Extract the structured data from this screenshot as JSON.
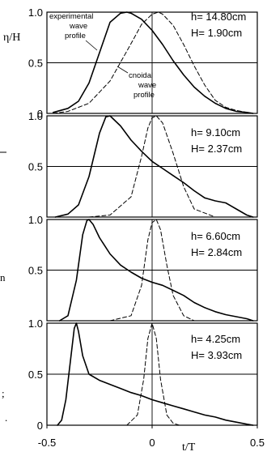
{
  "chart_data": [
    {
      "type": "line",
      "panel": 1,
      "ylabel": "η/H",
      "ytick_labels": [
        "0",
        "0.5",
        "1.0"
      ],
      "ylim": [
        0,
        1
      ],
      "xlim": [
        -0.5,
        0.5
      ],
      "grid": "horizontal at 0.5",
      "annotations": {
        "h": "h= 14.80cm",
        "H": "H= 1.90cm",
        "experimental_label": [
          "experimental",
          "wave",
          "profile"
        ],
        "cnoidal_label": [
          "cnoidal",
          "wave",
          "profile"
        ]
      },
      "series": [
        {
          "style": "solid",
          "x": [
            -0.47,
            -0.4,
            -0.35,
            -0.3,
            -0.25,
            -0.2,
            -0.15,
            -0.12,
            -0.1,
            -0.05,
            0,
            0.05,
            0.1,
            0.15,
            0.2,
            0.25,
            0.3,
            0.35,
            0.4,
            0.45,
            0.48
          ],
          "y": [
            0.01,
            0.05,
            0.12,
            0.3,
            0.6,
            0.9,
            0.99,
            1.0,
            0.99,
            0.93,
            0.82,
            0.68,
            0.52,
            0.38,
            0.26,
            0.17,
            0.1,
            0.05,
            0.02,
            0.01,
            0.0
          ]
        },
        {
          "style": "dashed",
          "x": [
            -0.47,
            -0.4,
            -0.3,
            -0.2,
            -0.1,
            -0.05,
            0,
            0.03,
            0.05,
            0.1,
            0.15,
            0.2,
            0.25,
            0.3,
            0.35,
            0.4,
            0.45
          ],
          "y": [
            0.0,
            0.02,
            0.1,
            0.32,
            0.69,
            0.88,
            0.98,
            1.0,
            0.98,
            0.87,
            0.68,
            0.47,
            0.28,
            0.13,
            0.06,
            0.03,
            0.01
          ]
        }
      ]
    },
    {
      "type": "line",
      "panel": 2,
      "ytick_labels": [
        "0.5",
        "1.0"
      ],
      "ylim": [
        0,
        1
      ],
      "xlim": [
        -0.5,
        0.5
      ],
      "annotations": {
        "h": "h= 9.10cm",
        "H": "H= 2.37cm"
      },
      "series": [
        {
          "style": "solid",
          "x": [
            -0.46,
            -0.4,
            -0.35,
            -0.3,
            -0.25,
            -0.22,
            -0.2,
            -0.15,
            -0.1,
            -0.05,
            0,
            0.05,
            0.1,
            0.15,
            0.2,
            0.25,
            0.3,
            0.35,
            0.4,
            0.45,
            0.48
          ],
          "y": [
            0.0,
            0.03,
            0.12,
            0.4,
            0.83,
            0.99,
            1.0,
            0.9,
            0.76,
            0.65,
            0.55,
            0.48,
            0.41,
            0.34,
            0.26,
            0.19,
            0.16,
            0.14,
            0.08,
            0.02,
            0.0
          ]
        },
        {
          "style": "dashed",
          "x": [
            -0.3,
            -0.2,
            -0.1,
            -0.05,
            -0.02,
            0,
            0.02,
            0.05,
            0.1,
            0.15,
            0.2,
            0.3
          ],
          "y": [
            0.0,
            0.02,
            0.2,
            0.6,
            0.88,
            0.98,
            1.0,
            0.93,
            0.63,
            0.3,
            0.08,
            0.0
          ]
        }
      ]
    },
    {
      "type": "line",
      "panel": 3,
      "ytick_labels": [
        "0.5",
        "1.0"
      ],
      "ylim": [
        0,
        1
      ],
      "xlim": [
        -0.5,
        0.5
      ],
      "annotations": {
        "h": "h= 6.60cm",
        "H": "H= 2.84cm"
      },
      "series": [
        {
          "style": "solid",
          "x": [
            -0.44,
            -0.4,
            -0.36,
            -0.33,
            -0.31,
            -0.3,
            -0.28,
            -0.25,
            -0.2,
            -0.15,
            -0.1,
            -0.05,
            0,
            0.05,
            0.1,
            0.15,
            0.2,
            0.25,
            0.3,
            0.35,
            0.4,
            0.45,
            0.48
          ],
          "y": [
            0.0,
            0.05,
            0.4,
            0.85,
            0.99,
            1.0,
            0.95,
            0.82,
            0.66,
            0.55,
            0.48,
            0.42,
            0.38,
            0.35,
            0.3,
            0.25,
            0.18,
            0.13,
            0.09,
            0.06,
            0.04,
            0.02,
            0.0
          ]
        },
        {
          "style": "dashed",
          "x": [
            -0.2,
            -0.1,
            -0.05,
            -0.02,
            0,
            0.02,
            0.04,
            0.07,
            0.1,
            0.15,
            0.2
          ],
          "y": [
            0.0,
            0.05,
            0.35,
            0.8,
            0.97,
            1.0,
            0.9,
            0.55,
            0.25,
            0.05,
            0.0
          ]
        }
      ]
    },
    {
      "type": "line",
      "panel": 4,
      "ytick_labels": [
        "0",
        "0.5",
        "1.0"
      ],
      "ylim": [
        0,
        1
      ],
      "xlim": [
        -0.5,
        0.5
      ],
      "xticks": [
        -0.5,
        0,
        0.5
      ],
      "xtick_labels": [
        "-0.5",
        "0",
        "0.5"
      ],
      "xlabel": "t/T",
      "annotations": {
        "h": "h= 4.25cm",
        "H": "H= 3.93cm"
      },
      "series": [
        {
          "style": "solid",
          "x": [
            -0.45,
            -0.43,
            -0.41,
            -0.39,
            -0.37,
            -0.36,
            -0.35,
            -0.33,
            -0.3,
            -0.25,
            -0.2,
            -0.15,
            -0.1,
            -0.05,
            0,
            0.05,
            0.1,
            0.15,
            0.2,
            0.25,
            0.3,
            0.35,
            0.4,
            0.45,
            0.48
          ],
          "y": [
            0.0,
            0.05,
            0.25,
            0.6,
            0.95,
            1.0,
            0.92,
            0.68,
            0.5,
            0.44,
            0.4,
            0.36,
            0.32,
            0.29,
            0.25,
            0.22,
            0.19,
            0.16,
            0.13,
            0.1,
            0.08,
            0.05,
            0.03,
            0.01,
            0.0
          ]
        },
        {
          "style": "dashed",
          "x": [
            -0.12,
            -0.07,
            -0.04,
            -0.02,
            0,
            0.02,
            0.04,
            0.07,
            0.1,
            0.13
          ],
          "y": [
            0.0,
            0.1,
            0.45,
            0.85,
            1.0,
            0.85,
            0.45,
            0.1,
            0.02,
            0.0
          ]
        }
      ]
    }
  ],
  "stray_text": [
    "n",
    ";",
    "."
  ]
}
